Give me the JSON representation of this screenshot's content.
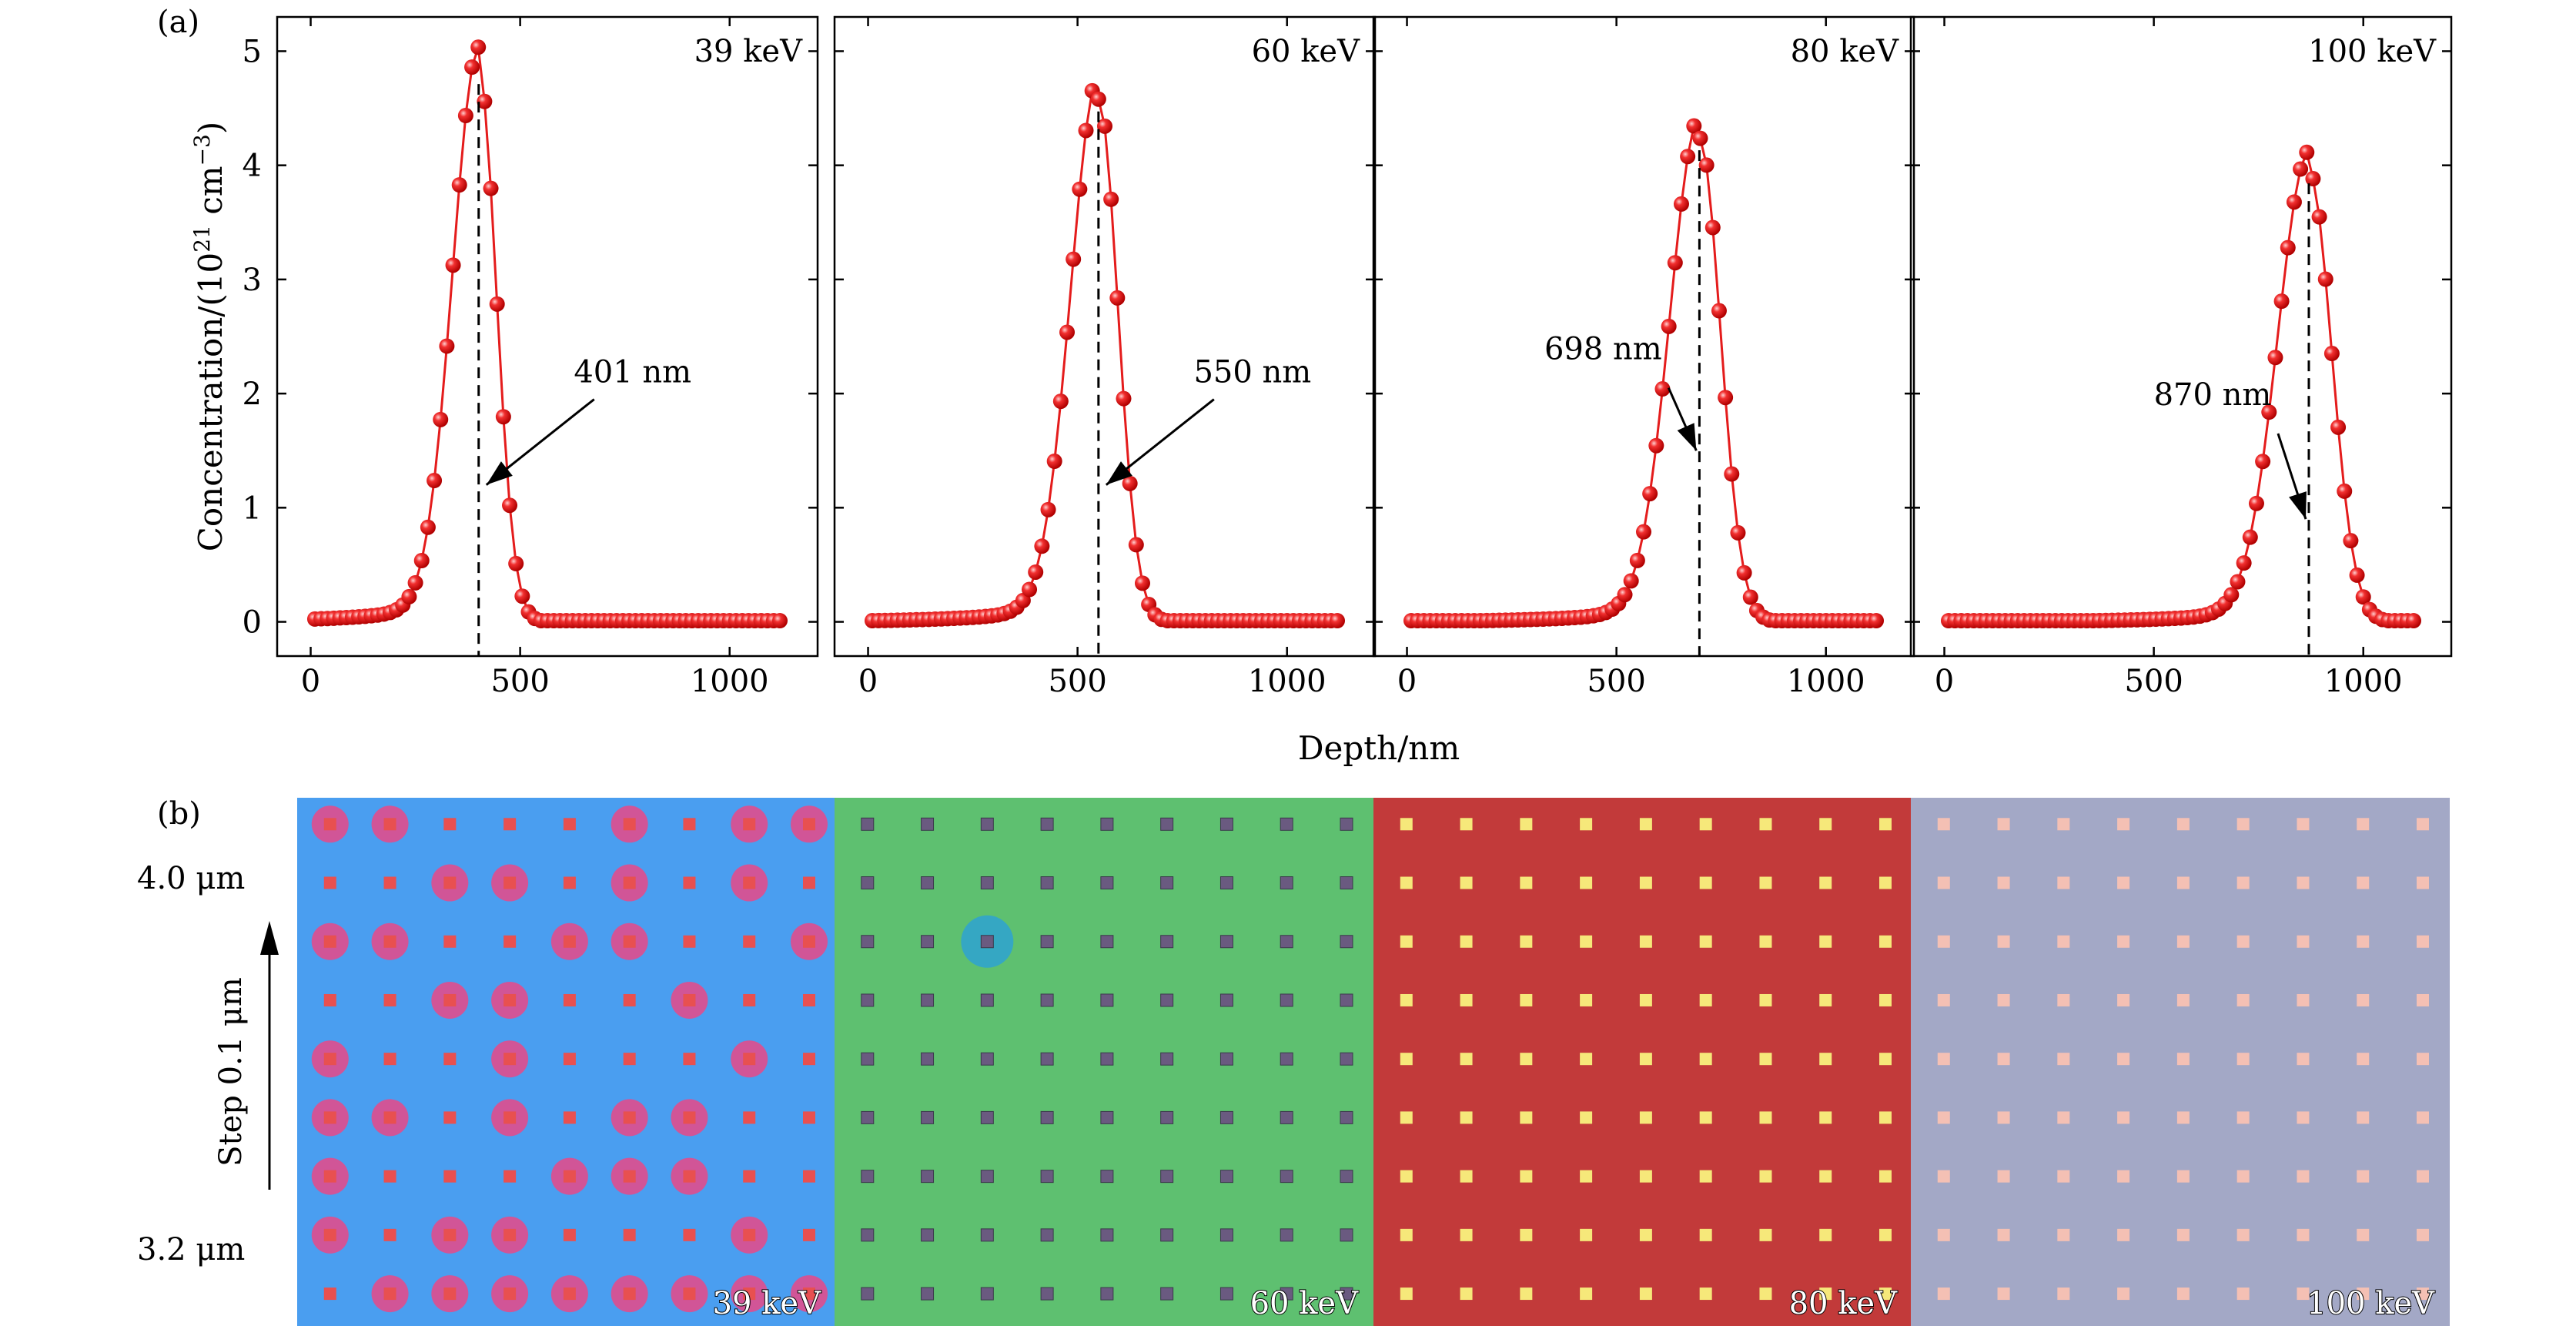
{
  "panel_a_label": "(a)",
  "panel_b_label": "(b)",
  "axes": {
    "ylabel": "Concentration/(10",
    "ylabel_sup": "21",
    "ylabel_mid": " cm",
    "ylabel_sup2": "−3",
    "ylabel_end": ")",
    "xlabel": "Depth/nm"
  },
  "chart_data": [
    {
      "type": "line",
      "title": "39 keV",
      "annotation": "401 nm",
      "peak_depth": 401,
      "peak_value": 4.82,
      "sigma_left": 62,
      "sigma_right": 42,
      "x": [
        10,
        1130
      ],
      "xlim": [
        -80,
        1210
      ],
      "ylim": [
        -0.3,
        5.3
      ],
      "xticks": [
        0,
        500,
        1000
      ],
      "yticks": [
        0,
        1,
        2,
        3,
        4,
        5
      ],
      "marker_color": "#e41c1c"
    },
    {
      "type": "line",
      "title": "60 keV",
      "annotation": "550 nm",
      "peak_depth": 550,
      "peak_value": 4.58,
      "sigma_left": 66,
      "sigma_right": 46,
      "x": [
        10,
        1130
      ],
      "xlim": [
        -80,
        1210
      ],
      "ylim": [
        -0.3,
        5.3
      ],
      "xticks": [
        0,
        500,
        1000
      ],
      "yticks": [
        0,
        1,
        2,
        3,
        4,
        5
      ],
      "marker_color": "#e41c1c"
    },
    {
      "type": "line",
      "title": "80 keV",
      "annotation": "698 nm",
      "peak_depth": 698,
      "peak_value": 4.24,
      "sigma_left": 70,
      "sigma_right": 50,
      "x": [
        10,
        1130
      ],
      "xlim": [
        -80,
        1210
      ],
      "ylim": [
        -0.3,
        5.3
      ],
      "xticks": [
        0,
        500,
        1000
      ],
      "yticks": [
        0,
        1,
        2,
        3,
        4,
        5
      ],
      "marker_color": "#e41c1c"
    },
    {
      "type": "line",
      "title": "100 keV",
      "annotation": "870 nm",
      "peak_depth": 870,
      "peak_value": 3.95,
      "sigma_left": 74,
      "sigma_right": 54,
      "x": [
        10,
        1130
      ],
      "xlim": [
        -80,
        1210
      ],
      "ylim": [
        -0.3,
        5.3
      ],
      "xticks": [
        0,
        500,
        1000
      ],
      "yticks": [
        0,
        1,
        2,
        3,
        4,
        5
      ],
      "marker_color": "#e41c1c"
    }
  ],
  "microscopy": {
    "top_label": "4.0 μm",
    "bottom_label": "3.2 μm",
    "step_label": "Step 0.1 μm",
    "panels": [
      {
        "label": "39 keV",
        "background": "#4a9ef0",
        "dot_color": "#e85050",
        "halo_color": "#ff3c7a"
      },
      {
        "label": "60 keV",
        "background": "#5ec070",
        "dot_color": "#6a5a80",
        "halo_color": "#2aa0d8"
      },
      {
        "label": "80 keV",
        "background": "#c23a3a",
        "dot_color": "#f6e87a",
        "halo_color": "#ffb040"
      },
      {
        "label": "100 keV",
        "background": "#a3a8c6",
        "dot_color": "#f4c0b4",
        "halo_color": "#f4c0b4"
      }
    ]
  }
}
